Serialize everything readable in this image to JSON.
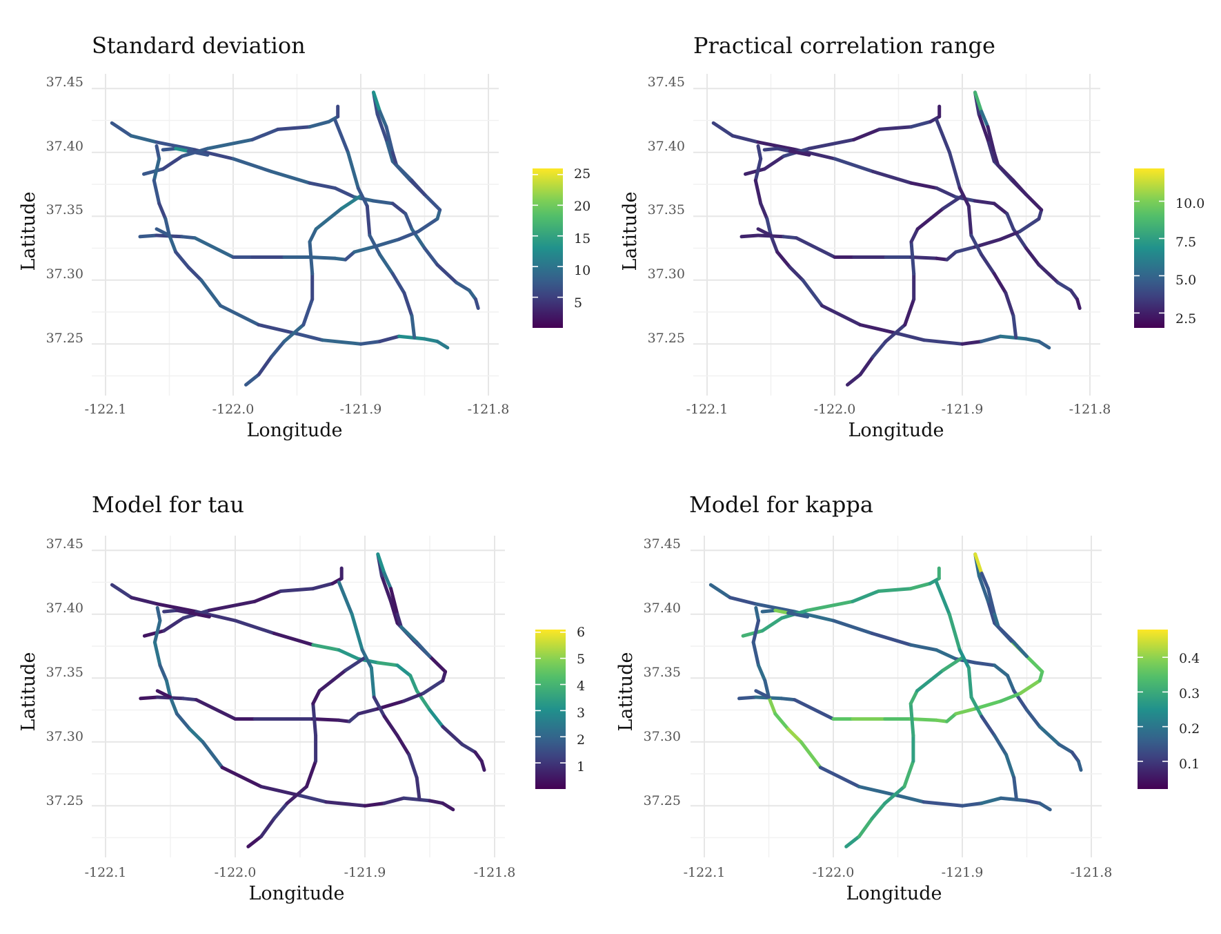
{
  "chart_data": [
    {
      "type": "line",
      "title": "Standard deviation",
      "xlabel": "Longitude",
      "ylabel": "Latitude",
      "xlim": [
        -122.1,
        -121.8
      ],
      "ylim": [
        37.215,
        37.455
      ],
      "x_ticks": [
        "-122.1",
        "-122.0",
        "-121.9",
        "-121.8"
      ],
      "y_ticks": [
        "37.25",
        "37.30",
        "37.35",
        "37.40",
        "37.45"
      ],
      "colorbar": {
        "min": 0,
        "max": 26,
        "ticks": [
          5,
          10,
          15,
          20,
          25
        ],
        "tick_labels": [
          "5",
          "10",
          "15",
          "20",
          "25"
        ]
      },
      "base_value": 0.27,
      "highlights": [
        {
          "road": 8,
          "from": 0.0,
          "to": 0.35,
          "v": 0.45
        },
        {
          "road": 2,
          "from": 0.35,
          "to": 0.55,
          "v": 0.55
        },
        {
          "road": 5,
          "from": 0.85,
          "to": 1.0,
          "v": 0.4
        },
        {
          "road": 4,
          "from": 0.85,
          "to": 1.0,
          "v": 0.45
        },
        {
          "road": 3,
          "from": 0.4,
          "to": 0.6,
          "v": 0.3
        }
      ]
    },
    {
      "type": "line",
      "title": "Practical correlation range",
      "xlabel": "Longitude",
      "ylabel": "Latitude",
      "xlim": [
        -122.1,
        -121.8
      ],
      "ylim": [
        37.215,
        37.455
      ],
      "x_ticks": [
        "-122.1",
        "-122.0",
        "-121.9",
        "-121.8"
      ],
      "y_ticks": [
        "37.25",
        "37.30",
        "37.35",
        "37.40",
        "37.45"
      ],
      "colorbar": {
        "min": 1.5,
        "max": 12.2,
        "ticks": [
          2.5,
          5.0,
          7.5,
          10.0
        ],
        "tick_labels": [
          "2.5",
          "5.0",
          "7.5",
          "10.0"
        ]
      },
      "base_value": 0.15,
      "highlights": [
        {
          "road": 8,
          "from": 0.0,
          "to": 0.35,
          "v": 0.6
        },
        {
          "road": 8,
          "from": 0.35,
          "to": 0.6,
          "v": 0.4
        },
        {
          "road": 4,
          "from": 0.8,
          "to": 1.0,
          "v": 0.35
        }
      ]
    },
    {
      "type": "line",
      "title": "Model for tau",
      "xlabel": "Longitude",
      "ylabel": "Latitude",
      "xlim": [
        -122.1,
        -121.8
      ],
      "ylim": [
        37.215,
        37.455
      ],
      "x_ticks": [
        "-122.1",
        "-122.0",
        "-121.9",
        "-121.8"
      ],
      "y_ticks": [
        "37.25",
        "37.30",
        "37.35",
        "37.40",
        "37.45"
      ],
      "colorbar": {
        "min": 0,
        "max": 6.1,
        "ticks": [
          1,
          2,
          3,
          4,
          5,
          6
        ],
        "tick_labels": [
          "1",
          "2",
          "3",
          "4",
          "5",
          "6"
        ]
      },
      "base_value": 0.12,
      "highlights": [
        {
          "road": 0,
          "from": 0.35,
          "to": 0.75,
          "v": 0.55
        },
        {
          "road": 8,
          "from": 0.0,
          "to": 0.5,
          "v": 0.45
        },
        {
          "road": 8,
          "from": 0.5,
          "to": 0.6,
          "v": 0.75
        },
        {
          "road": 4,
          "from": 0.0,
          "to": 0.5,
          "v": 0.35
        },
        {
          "road": 9,
          "from": 0.0,
          "to": 1.0,
          "v": 0.35
        },
        {
          "road": 6,
          "from": 0.0,
          "to": 0.4,
          "v": 0.4
        }
      ]
    },
    {
      "type": "line",
      "title": "Model for kappa",
      "xlabel": "Longitude",
      "ylabel": "Latitude",
      "xlim": [
        -122.1,
        -121.8
      ],
      "ylim": [
        37.215,
        37.455
      ],
      "x_ticks": [
        "-122.1",
        "-122.0",
        "-121.9",
        "-121.8"
      ],
      "y_ticks": [
        "37.25",
        "37.30",
        "37.35",
        "37.40",
        "37.45"
      ],
      "colorbar": {
        "min": 0.02,
        "max": 0.48,
        "ticks": [
          0.1,
          0.2,
          0.3,
          0.4
        ],
        "tick_labels": [
          "0.1",
          "0.2",
          "0.3",
          "0.4"
        ]
      },
      "base_value": 0.3,
      "highlights": [
        {
          "road": 1,
          "from": 0.0,
          "to": 1.0,
          "v": 0.6
        },
        {
          "road": 2,
          "from": 0.3,
          "to": 0.5,
          "v": 0.85
        },
        {
          "road": 3,
          "from": 0.2,
          "to": 0.8,
          "v": 0.75
        },
        {
          "road": 5,
          "from": 0.0,
          "to": 1.0,
          "v": 0.6
        },
        {
          "road": 6,
          "from": 0.0,
          "to": 0.5,
          "v": 0.55
        },
        {
          "road": 4,
          "from": 0.3,
          "to": 0.5,
          "v": 0.8
        },
        {
          "road": 8,
          "from": 0.0,
          "to": 0.2,
          "v": 0.9
        }
      ]
    }
  ]
}
